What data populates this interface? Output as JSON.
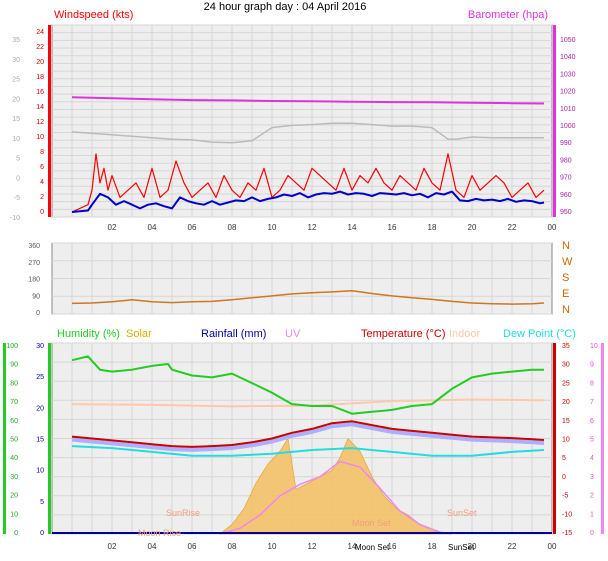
{
  "title": "24 hour graph day : 04 April 2016",
  "colors": {
    "windspeed": "#ff0000",
    "average": "#0000cc",
    "barometer": "#dd33dd",
    "gust_trace": "#bbbbbb",
    "direction": "#cc7722",
    "humidity": "#22cc22",
    "solar": "#d4b000",
    "solar_fill": "#f5c060",
    "rainfall": "#000099",
    "uv": "#ee88ee",
    "temperature": "#cc0000",
    "indoor": "#ffc8a8",
    "dewpoint": "#22dddd",
    "temp_fill": "#aab0ff"
  },
  "chart_data": [
    {
      "type": "line",
      "panel": "wind",
      "title": "24 hour graph day : 04 April 2016",
      "left_label": "Windspeed (kts)",
      "right_label": "Barometer (hpa)",
      "x_ticks": [
        "02",
        "04",
        "06",
        "08",
        "10",
        "12",
        "14",
        "16",
        "18",
        "20",
        "22",
        "00"
      ],
      "y_left_ticks": [
        "24",
        "22",
        "20",
        "18",
        "16",
        "14",
        "12",
        "10",
        "8",
        "6",
        "4",
        "2",
        "0"
      ],
      "y_left_ticks_faded": [
        "35",
        "30",
        "25",
        "20",
        "15",
        "10",
        "5",
        "0",
        "-5",
        "-10"
      ],
      "y_right_ticks": [
        "1050",
        "1040",
        "1030",
        "1020",
        "1010",
        "1000",
        "990",
        "980",
        "970",
        "960",
        "950"
      ],
      "ylim_left": [
        0,
        25
      ],
      "ylim_right": [
        950,
        1050
      ],
      "series": [
        {
          "key": "barometer",
          "axis": "right",
          "x": [
            0,
            2,
            4,
            6,
            8,
            10,
            12,
            14,
            16,
            18,
            20,
            22,
            23.6
          ],
          "values": [
            1013,
            1012.5,
            1012,
            1011.5,
            1011.3,
            1011,
            1010.8,
            1010.6,
            1010.4,
            1010.3,
            1010,
            1009.8,
            1009.6
          ]
        },
        {
          "key": "gust_trace",
          "axis": "left",
          "x": [
            0,
            1,
            2,
            3,
            4,
            5,
            6,
            7,
            8,
            9,
            10,
            11,
            12,
            13,
            14,
            15,
            16,
            17,
            18,
            18.8,
            19.2,
            20,
            21,
            22,
            23,
            23.6
          ],
          "values": [
            11,
            10.8,
            10.6,
            10.4,
            10.2,
            10,
            9.9,
            9.6,
            9.5,
            9.8,
            11.6,
            11.9,
            12,
            12.2,
            12.2,
            12,
            11.8,
            11.8,
            11.6,
            10,
            10,
            10.3,
            10.2,
            10.2,
            10.2,
            10.2
          ]
        },
        {
          "key": "windspeed",
          "axis": "left",
          "x": [
            0,
            0.8,
            1,
            1.2,
            1.4,
            1.6,
            1.8,
            2,
            2.4,
            2.8,
            3.2,
            3.6,
            4,
            4.4,
            4.8,
            5.2,
            5.6,
            6,
            6.4,
            6.8,
            7.2,
            7.6,
            8,
            8.4,
            8.8,
            9.2,
            9.6,
            10,
            10.4,
            10.8,
            11.2,
            11.6,
            12,
            12.4,
            12.8,
            13.2,
            13.6,
            14,
            14.4,
            14.8,
            15.2,
            15.6,
            16,
            16.4,
            16.8,
            17.2,
            17.6,
            18,
            18.4,
            18.8,
            19.2,
            19.6,
            20,
            20.4,
            20.8,
            21.2,
            21.6,
            22,
            22.4,
            22.8,
            23.2,
            23.6
          ],
          "values": [
            0,
            1,
            3,
            8,
            4,
            6,
            3,
            5,
            2,
            3,
            4,
            2,
            6,
            2,
            3,
            7,
            4,
            2,
            3,
            4,
            2,
            5,
            3,
            2,
            4,
            3,
            6,
            2,
            3,
            5,
            4,
            3,
            6,
            5,
            4,
            3,
            6,
            3,
            5,
            4,
            6,
            4,
            3,
            5,
            4,
            3,
            6,
            4,
            3,
            8,
            3,
            2,
            5,
            3,
            4,
            5,
            4,
            2,
            3,
            4,
            2,
            3
          ]
        },
        {
          "key": "average",
          "axis": "left",
          "x": [
            0,
            0.8,
            1,
            1.4,
            1.8,
            2.2,
            2.6,
            3,
            3.4,
            3.8,
            4.2,
            4.6,
            5,
            5.4,
            5.8,
            6.2,
            6.6,
            7,
            7.4,
            7.8,
            8.2,
            8.6,
            9,
            9.4,
            9.8,
            10.2,
            10.6,
            11,
            11.4,
            11.8,
            12.2,
            12.6,
            13,
            13.4,
            13.8,
            14.2,
            14.6,
            15,
            15.4,
            15.8,
            16.2,
            16.6,
            17,
            17.4,
            17.8,
            18.2,
            18.6,
            19,
            19.4,
            19.8,
            20.2,
            20.6,
            21,
            21.4,
            21.8,
            22.2,
            22.6,
            23,
            23.4,
            23.6
          ],
          "values": [
            0,
            0.2,
            1,
            2.5,
            2,
            1,
            1.5,
            1,
            0.5,
            1,
            1.2,
            0.8,
            0.5,
            2,
            1.5,
            1.2,
            1,
            1.5,
            1,
            1.3,
            1.6,
            1.5,
            2,
            1.5,
            1.8,
            2,
            2.4,
            2.2,
            2.6,
            2,
            2.4,
            2.6,
            2.5,
            2.8,
            2.4,
            2.6,
            2.5,
            2.2,
            2.6,
            2.5,
            2.4,
            2.6,
            2.3,
            2.5,
            2,
            2.6,
            2.4,
            2.8,
            1.6,
            1.5,
            1.8,
            1.6,
            1.7,
            1.5,
            1.8,
            1.4,
            1.6,
            1.5,
            1.2,
            1.3
          ]
        }
      ]
    },
    {
      "type": "line",
      "panel": "direction",
      "x_ticks": [
        "02",
        "04",
        "06",
        "08",
        "10",
        "12",
        "14",
        "16",
        "18",
        "20",
        "22",
        "00"
      ],
      "y_ticks": [
        "360",
        "270",
        "180",
        "90",
        "0"
      ],
      "compass": [
        "N",
        "W",
        "S",
        "E",
        "N"
      ],
      "ylim": [
        0,
        360
      ],
      "series": [
        {
          "key": "direction",
          "x": [
            0,
            1,
            2,
            3,
            4,
            5,
            6,
            7,
            8,
            9,
            10,
            11,
            12,
            13,
            14,
            15,
            16,
            17,
            18,
            19,
            20,
            21,
            22,
            23,
            23.6
          ],
          "values": [
            54,
            56,
            62,
            72,
            62,
            58,
            62,
            64,
            72,
            82,
            92,
            102,
            108,
            112,
            118,
            104,
            92,
            82,
            74,
            64,
            56,
            52,
            50,
            52,
            56
          ]
        }
      ]
    },
    {
      "type": "line",
      "panel": "temperature",
      "legend": [
        "Humidity (%)",
        "Solar",
        "Rainfall (mm)",
        "UV",
        "Temperature (°C)",
        "Indoor",
        "Dew Point (°C)"
      ],
      "x_ticks": [
        "02",
        "04",
        "06",
        "08",
        "10",
        "12",
        "14",
        "16",
        "18",
        "20",
        "22",
        "00"
      ],
      "humidity_ticks": [
        "100",
        "90",
        "80",
        "70",
        "60",
        "50",
        "40",
        "30",
        "20",
        "10",
        "0"
      ],
      "rain_ticks": [
        "30",
        "25",
        "20",
        "15",
        "10",
        "5",
        "0"
      ],
      "temp_ticks": [
        "35",
        "30",
        "25",
        "20",
        "15",
        "10",
        "5",
        "0",
        "-5",
        "-10",
        "-15"
      ],
      "uv_ticks": [
        "10",
        "9",
        "8",
        "7",
        "6",
        "5",
        "4",
        "3",
        "2",
        "1",
        "0"
      ],
      "labels": [
        "SunRise",
        "SunSet",
        "Moon Rise",
        "Moon Set",
        "Moon Set",
        "SunSet"
      ],
      "series": [
        {
          "key": "humidity",
          "x": [
            0,
            0.8,
            1.4,
            2,
            3,
            4,
            4.8,
            5,
            6,
            7,
            8,
            9,
            10,
            11,
            12,
            13,
            14,
            15,
            16,
            17,
            18,
            19,
            20,
            21,
            22,
            23,
            23.6
          ],
          "values": [
            91,
            93,
            86,
            85,
            86,
            88,
            89,
            86,
            83,
            82,
            84,
            79,
            74,
            68,
            67,
            67,
            63,
            64,
            65,
            67,
            68,
            76,
            82,
            84,
            85,
            86,
            86
          ]
        },
        {
          "key": "indoor",
          "x": [
            0,
            4,
            8,
            12,
            16,
            20,
            23.6
          ],
          "values": [
            19,
            18.8,
            18.4,
            18.6,
            19.8,
            20.2,
            20
          ]
        },
        {
          "key": "temperature",
          "x": [
            0,
            1,
            2,
            3,
            4,
            5,
            6,
            7,
            8,
            9,
            10,
            11,
            12,
            13,
            14,
            15,
            16,
            17,
            18,
            19,
            20,
            21,
            22,
            23,
            23.6
          ],
          "values": [
            10.5,
            10,
            9.5,
            9,
            8.5,
            8,
            7.8,
            8,
            8.3,
            9,
            10,
            11.5,
            12.5,
            14,
            14.5,
            13.5,
            12.5,
            12,
            11.5,
            11,
            10.5,
            10.3,
            10.1,
            9.8,
            9.6
          ]
        },
        {
          "key": "dewpoint",
          "x": [
            0,
            2,
            4,
            6,
            8,
            10,
            12,
            14,
            16,
            18,
            20,
            22,
            23.6
          ],
          "values": [
            8,
            7.5,
            6.5,
            5.5,
            5.5,
            6,
            7,
            7.5,
            6.5,
            5.5,
            5.5,
            6.5,
            7
          ]
        },
        {
          "key": "solar",
          "x": [
            7.4,
            8,
            8.6,
            9.2,
            9.8,
            10.4,
            10.8,
            11.2,
            11.8,
            12.4,
            13,
            13.4,
            13.8,
            14.4,
            15,
            15.6,
            16.2,
            16.8,
            17.4,
            18,
            18.6,
            19
          ],
          "values": [
            0,
            1.5,
            4,
            8,
            11,
            13,
            15,
            7,
            8,
            9,
            10,
            12,
            15,
            13,
            9,
            6,
            4,
            3,
            1.5,
            0.5,
            0.2,
            0
          ]
        },
        {
          "key": "uv",
          "x": [
            7.4,
            8.4,
            9.4,
            10.4,
            11.4,
            12.4,
            13.4,
            14.4,
            15.4,
            16.4,
            17.4,
            18.4,
            19
          ],
          "values": [
            0,
            0.3,
            1,
            2,
            2.6,
            3,
            3.8,
            3.5,
            2.4,
            1.2,
            0.5,
            0.1,
            0
          ]
        }
      ]
    }
  ]
}
